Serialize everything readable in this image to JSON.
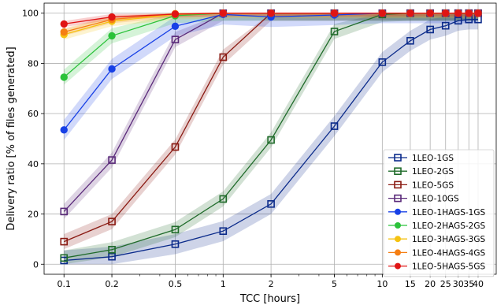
{
  "chart_data": {
    "type": "line",
    "xlabel": "TCC [hours]",
    "ylabel": "Delivery ratio [% of files generated]",
    "xscale": "log",
    "xlim": [
      0.075,
      52
    ],
    "ylim": [
      -4,
      104
    ],
    "grid": true,
    "legend_position": "lower-right",
    "x_ticks": [
      {
        "value": 0.1,
        "label": "0.1"
      },
      {
        "value": 0.2,
        "label": "0.2"
      },
      {
        "value": 0.5,
        "label": "0.5"
      },
      {
        "value": 1,
        "label": "1"
      },
      {
        "value": 2,
        "label": "2"
      },
      {
        "value": 5,
        "label": "5"
      },
      {
        "value": 10,
        "label": "10"
      },
      {
        "value": 15,
        "label": "15"
      },
      {
        "value": 20,
        "label": "20"
      },
      {
        "value": 25,
        "label": "25"
      },
      {
        "value": 30,
        "label": "30"
      },
      {
        "value": 35,
        "label": "35"
      },
      {
        "value": 40,
        "label": "40"
      }
    ],
    "y_ticks": [
      {
        "value": 0,
        "label": "0"
      },
      {
        "value": 20,
        "label": "20"
      },
      {
        "value": 40,
        "label": "40"
      },
      {
        "value": 60,
        "label": "60"
      },
      {
        "value": 80,
        "label": "80"
      },
      {
        "value": 100,
        "label": "100"
      }
    ],
    "x": [
      0.1,
      0.2,
      0.5,
      1,
      2,
      5,
      10,
      15,
      20,
      25,
      30,
      35,
      40
    ],
    "series": [
      {
        "name": "1LEO-1GS",
        "color": "#0a2a8a",
        "marker": "square-open",
        "values": [
          1.5,
          3,
          8,
          13.2,
          24,
          55,
          80.5,
          89,
          93.5,
          95,
          97,
          97.5,
          97.5
        ],
        "band": 4
      },
      {
        "name": "1LEO-2GS",
        "color": "#1f6b2a",
        "marker": "square-open",
        "values": [
          2.5,
          5.8,
          13.8,
          26,
          49.5,
          92.7,
          99.5,
          100,
          100,
          100,
          100,
          100,
          100
        ],
        "band": 3
      },
      {
        "name": "1LEO-5GS",
        "color": "#8a1a12",
        "marker": "square-open",
        "values": [
          9,
          17,
          46.7,
          82.5,
          100,
          100,
          100,
          100,
          100,
          100,
          100,
          100,
          100
        ],
        "band": 3
      },
      {
        "name": "1LEO-10GS",
        "color": "#5a2a7a",
        "marker": "square-open",
        "values": [
          21,
          41.5,
          89.5,
          100,
          100,
          100,
          100,
          100,
          100,
          100,
          100,
          100,
          100
        ],
        "band": 3
      },
      {
        "name": "1LEO-1HAGS-1GS",
        "color": "#1740e6",
        "marker": "circle",
        "values": [
          53.5,
          77.8,
          94.8,
          99.5,
          98.5,
          99.3,
          100,
          100,
          100,
          100,
          100,
          100,
          100
        ],
        "band": 4
      },
      {
        "name": "1LEO-2HAGS-2GS",
        "color": "#2bc23a",
        "marker": "circle",
        "values": [
          74.5,
          91,
          99,
          100,
          100,
          100,
          100,
          100,
          100,
          100,
          100,
          100,
          100
        ],
        "band": 3
      },
      {
        "name": "1LEO-3HAGS-3GS",
        "color": "#f5c210",
        "marker": "circle",
        "values": [
          91.5,
          96.8,
          99.5,
          100,
          100,
          100,
          100,
          100,
          100,
          100,
          100,
          100,
          100
        ],
        "band": 2
      },
      {
        "name": "1LEO-4HAGS-4GS",
        "color": "#f57e12",
        "marker": "circle",
        "values": [
          92.5,
          97.5,
          99.8,
          100,
          100,
          100,
          100,
          100,
          100,
          100,
          100,
          100,
          100
        ],
        "band": 1.5
      },
      {
        "name": "1LEO-5HAGS-5GS",
        "color": "#e01414",
        "marker": "circle",
        "values": [
          95.7,
          98.5,
          99.6,
          100,
          100,
          100,
          100,
          100,
          100,
          100,
          100,
          100,
          100
        ],
        "band": 1.2
      }
    ]
  }
}
